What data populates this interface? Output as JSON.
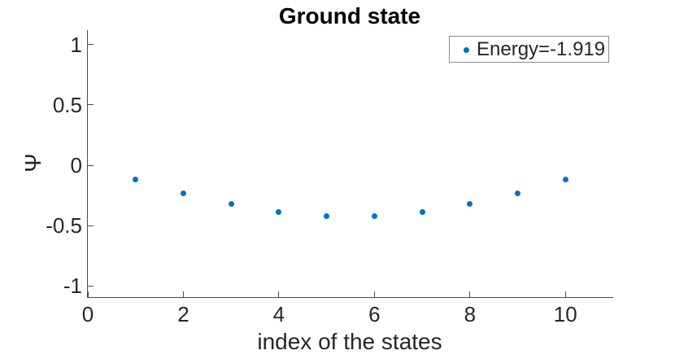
{
  "figure": {
    "background": "#ffffff"
  },
  "chart_data": {
    "type": "scatter",
    "title": "Ground state",
    "xlabel": "index of the states",
    "ylabel": "Ψ",
    "x": [
      1,
      2,
      3,
      4,
      5,
      6,
      7,
      8,
      9,
      10
    ],
    "y": [
      -0.12,
      -0.231,
      -0.322,
      -0.388,
      -0.422,
      -0.422,
      -0.388,
      -0.322,
      -0.231,
      -0.12
    ],
    "xlim": [
      0,
      11
    ],
    "ylim": [
      -1.091,
      1.118
    ],
    "xticks": [
      0,
      2,
      4,
      6,
      8,
      10
    ],
    "yticks": [
      -1,
      -0.5,
      0,
      0.5,
      1
    ],
    "grid": false,
    "box": false,
    "tick_direction": "in",
    "marker": "dot",
    "marker_color": "#0072BD",
    "axis_color": "#4a4a4a",
    "text_color": "#262626",
    "legend": {
      "position": "top-right",
      "entries": [
        {
          "label": "Energy=-1.919",
          "marker": "dot",
          "color": "#0072BD"
        }
      ]
    }
  }
}
